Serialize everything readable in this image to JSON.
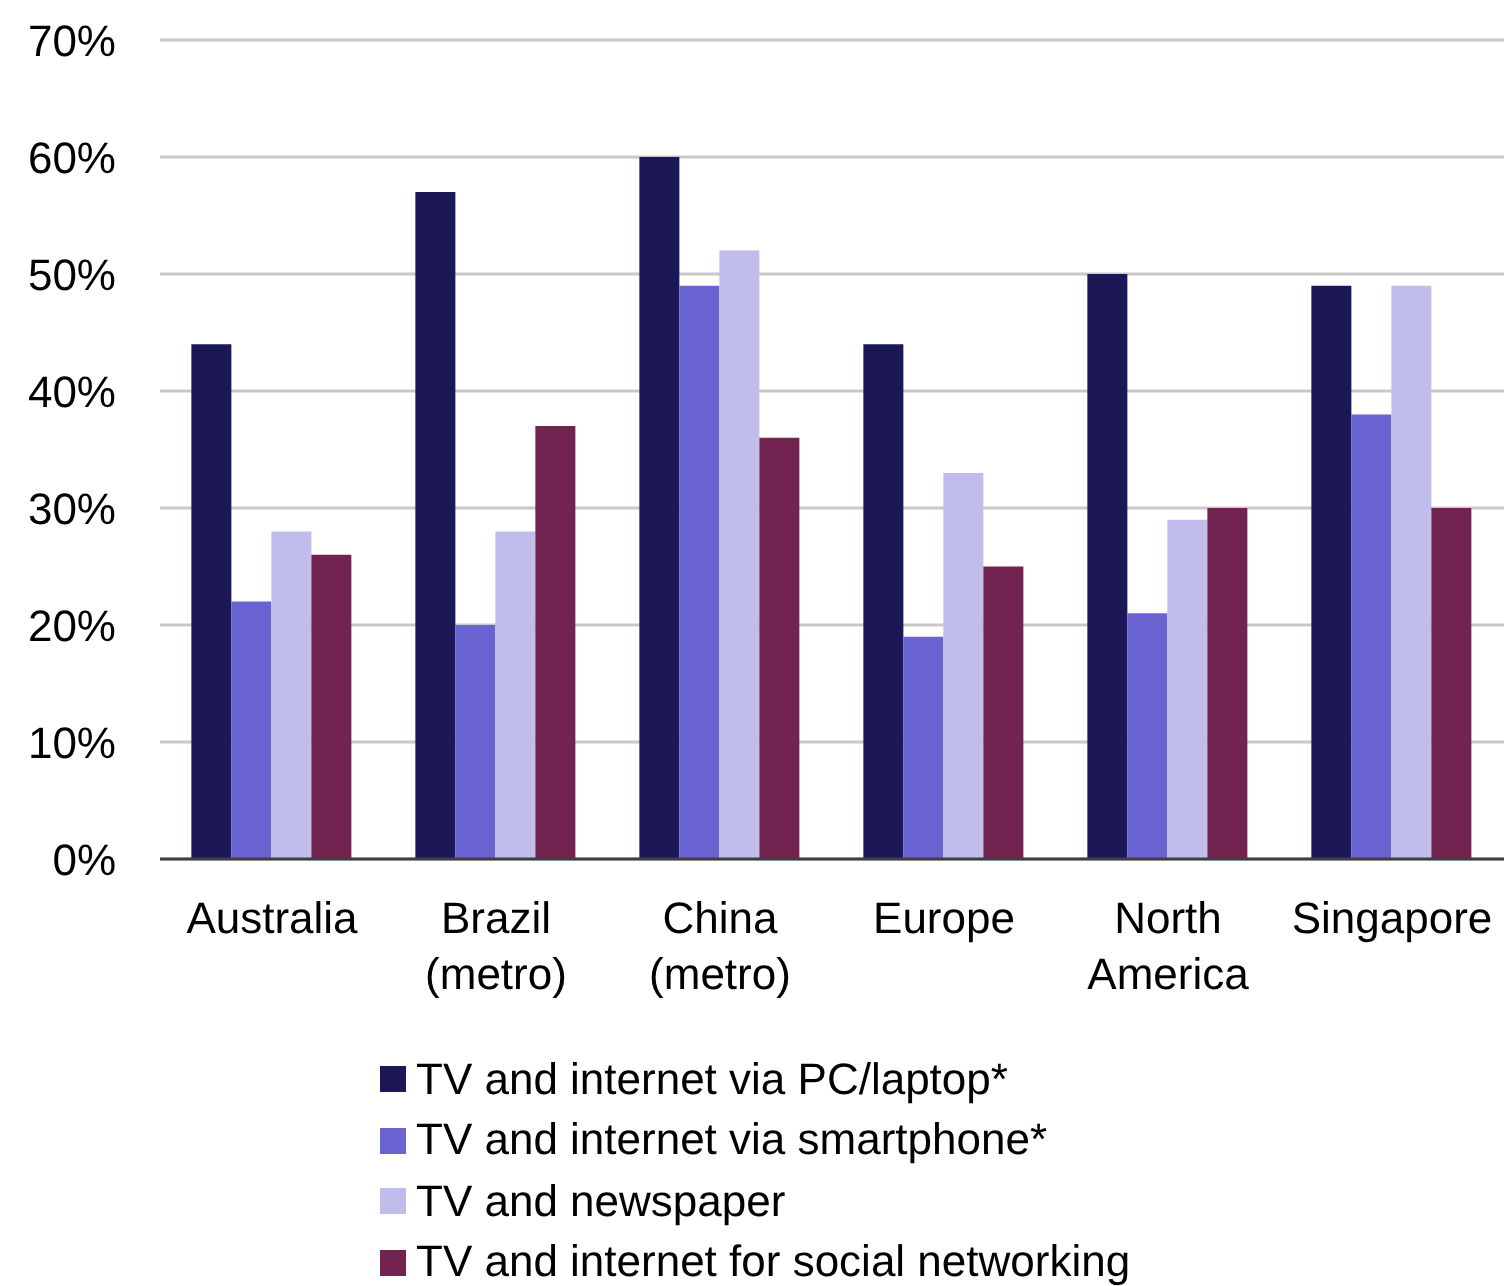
{
  "chart_data": {
    "type": "bar",
    "categories": [
      "Australia",
      "Brazil (metro)",
      "China (metro)",
      "Europe",
      "North America",
      "Singapore"
    ],
    "series": [
      {
        "name": "TV and internet via PC/laptop*",
        "color": "#1c1858",
        "values": [
          44,
          57,
          60,
          44,
          50,
          49
        ]
      },
      {
        "name": "TV and internet via smartphone*",
        "color": "#6a64d2",
        "values": [
          22,
          20,
          49,
          19,
          21,
          38
        ]
      },
      {
        "name": "TV and newspaper",
        "color": "#c0bdec",
        "values": [
          28,
          28,
          52,
          33,
          29,
          49
        ]
      },
      {
        "name": "TV and internet for social networking",
        "color": "#73234f",
        "values": [
          26,
          37,
          36,
          25,
          30,
          30
        ]
      }
    ],
    "ylim": [
      0,
      70
    ],
    "yticks": [
      {
        "value": 0,
        "label": "0%"
      },
      {
        "value": 10,
        "label": "10%"
      },
      {
        "value": 20,
        "label": "20%"
      },
      {
        "value": 30,
        "label": "30%"
      },
      {
        "value": 40,
        "label": "40%"
      },
      {
        "value": 50,
        "label": "50%"
      },
      {
        "value": 60,
        "label": "60%"
      },
      {
        "value": 70,
        "label": "70%"
      }
    ],
    "grid": "y",
    "legend": "bottom"
  }
}
